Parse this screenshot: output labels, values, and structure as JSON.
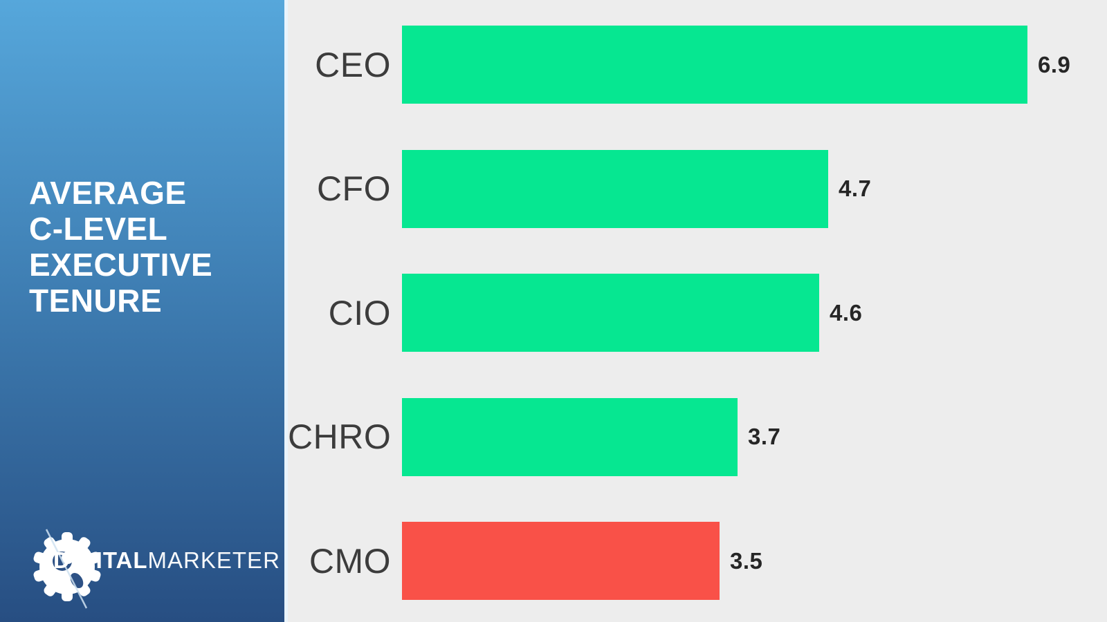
{
  "sidebar": {
    "title_lines": [
      "AVERAGE",
      "C-LEVEL",
      "EXECUTIVE",
      "TENURE"
    ],
    "logo": {
      "icon": "gear-icon",
      "text_bold": "DIGITAL",
      "text_light": "MARKETER"
    },
    "gradient_top": "#56a7db",
    "gradient_bottom": "#274e82"
  },
  "chart_data": {
    "type": "bar",
    "orientation": "horizontal",
    "title": "AVERAGE C-LEVEL EXECUTIVE TENURE",
    "categories": [
      "CEO",
      "CFO",
      "CIO",
      "CHRO",
      "CMO"
    ],
    "values": [
      6.9,
      4.7,
      4.6,
      3.7,
      3.5
    ],
    "value_labels": [
      "6.9",
      "4.7",
      "4.6",
      "3.7",
      "3.5"
    ],
    "bar_colors": [
      "#06e791",
      "#06e791",
      "#06e791",
      "#06e791",
      "#f95148"
    ],
    "xlabel": "",
    "ylabel": "",
    "xlim": [
      0,
      7.7
    ],
    "grid": false,
    "legend": false,
    "background": "#ededed",
    "label_color": "#3c3c3c",
    "value_color": "#262626"
  }
}
